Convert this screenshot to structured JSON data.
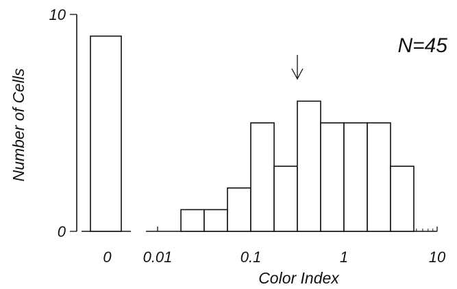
{
  "chart_data": {
    "type": "bar",
    "title": "",
    "xlabel": "Color Index",
    "ylabel": "Number of Cells",
    "annotation": "N=45",
    "ylim": [
      0,
      10
    ],
    "y_ticks": [
      "0",
      "10"
    ],
    "x_scale": "log",
    "xlim": [
      0.01,
      10
    ],
    "x_ticks": [
      "0.01",
      "0.1",
      "1",
      "10"
    ],
    "zero_bin": {
      "label": "0",
      "value": 9
    },
    "bins": [
      {
        "x0": 0.01,
        "x1": 0.0178,
        "value": 0
      },
      {
        "x0": 0.0178,
        "x1": 0.0316,
        "value": 1
      },
      {
        "x0": 0.0316,
        "x1": 0.0562,
        "value": 1
      },
      {
        "x0": 0.0562,
        "x1": 0.1,
        "value": 2
      },
      {
        "x0": 0.1,
        "x1": 0.178,
        "value": 5
      },
      {
        "x0": 0.178,
        "x1": 0.316,
        "value": 3
      },
      {
        "x0": 0.316,
        "x1": 0.562,
        "value": 6
      },
      {
        "x0": 0.562,
        "x1": 1.0,
        "value": 5
      },
      {
        "x0": 1.0,
        "x1": 1.78,
        "value": 5
      },
      {
        "x0": 1.78,
        "x1": 3.16,
        "value": 5
      },
      {
        "x0": 3.16,
        "x1": 5.62,
        "value": 3
      },
      {
        "x0": 5.62,
        "x1": 10,
        "value": 0
      }
    ],
    "arrow_marker_x": 0.316,
    "grid": false,
    "legend": "none"
  }
}
